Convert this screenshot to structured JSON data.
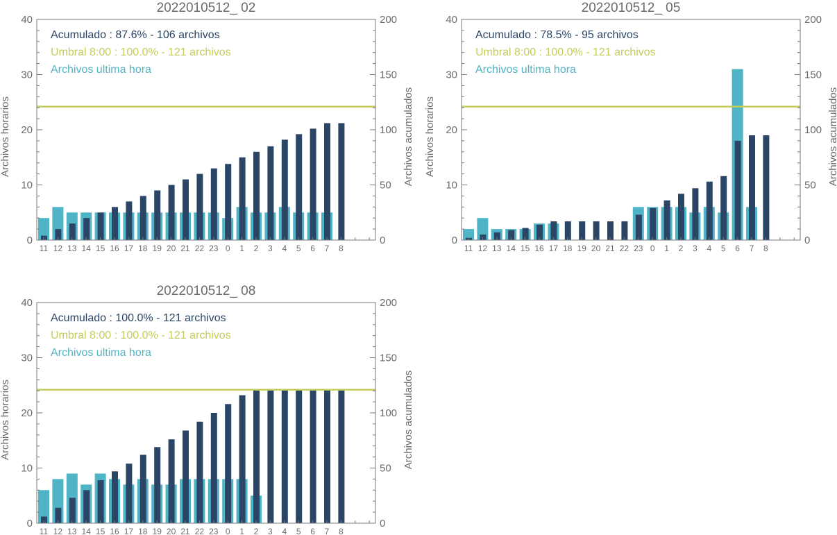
{
  "colors": {
    "hourly": "#4fb4c5",
    "cumulative": "#2b4566",
    "threshold": "#c3cc5c",
    "axis": "#7a7a7a",
    "text": "#6b6b6b"
  },
  "chart_data": [
    {
      "type": "bar",
      "title": "2022010512_ 02",
      "ylabel": "Archivos horarios",
      "y2label": "Archivos acumulados",
      "ylim": [
        0,
        40
      ],
      "y2lim": [
        0,
        200
      ],
      "yticks": [
        "0",
        "10",
        "20",
        "30",
        "40"
      ],
      "y2ticks": [
        "0",
        "50",
        "100",
        "150",
        "200"
      ],
      "categories": [
        "11",
        "12",
        "13",
        "14",
        "15",
        "16",
        "17",
        "18",
        "19",
        "20",
        "21",
        "22",
        "23",
        "0",
        "1",
        "2",
        "3",
        "4",
        "5",
        "6",
        "7",
        "8"
      ],
      "threshold": 121,
      "legend": {
        "cumulative": "Acumulado : 87.6% - 106 archivos",
        "threshold": "Umbral 8:00 : 100.0% - 121 archivos",
        "hourly": "Archivos ultima hora"
      },
      "series": [
        {
          "name": "Archivos ultima hora",
          "axis": "left",
          "values": [
            4,
            6,
            5,
            5,
            5,
            5,
            5,
            5,
            5,
            5,
            5,
            5,
            5,
            4,
            6,
            5,
            5,
            6,
            5,
            5,
            5,
            null
          ]
        },
        {
          "name": "Acumulado",
          "axis": "right",
          "values": [
            4,
            10,
            15,
            20,
            25,
            30,
            35,
            40,
            45,
            50,
            55,
            60,
            65,
            69,
            75,
            80,
            85,
            91,
            96,
            101,
            106,
            106
          ]
        }
      ]
    },
    {
      "type": "bar",
      "title": "2022010512_ 05",
      "ylabel": "Archivos horarios",
      "y2label": "Archivos acumulados",
      "ylim": [
        0,
        40
      ],
      "y2lim": [
        0,
        200
      ],
      "yticks": [
        "0",
        "10",
        "20",
        "30",
        "40"
      ],
      "y2ticks": [
        "0",
        "50",
        "100",
        "150",
        "200"
      ],
      "categories": [
        "11",
        "12",
        "13",
        "14",
        "15",
        "16",
        "17",
        "18",
        "19",
        "20",
        "21",
        "22",
        "23",
        "0",
        "1",
        "2",
        "3",
        "4",
        "5",
        "6",
        "7",
        "8"
      ],
      "threshold": 121,
      "legend": {
        "cumulative": "Acumulado : 78.5% - 95 archivos",
        "threshold": "Umbral 8:00 : 100.0% - 121 archivos",
        "hourly": "Archivos ultima hora"
      },
      "series": [
        {
          "name": "Archivos ultima hora",
          "axis": "left",
          "values": [
            2,
            4,
            2,
            2,
            2,
            3,
            3,
            null,
            null,
            null,
            null,
            null,
            6,
            6,
            6,
            6,
            5,
            6,
            5,
            31,
            6,
            null
          ]
        },
        {
          "name": "Acumulado",
          "axis": "right",
          "values": [
            2,
            5,
            7,
            9,
            11,
            14,
            17,
            17,
            17,
            17,
            17,
            17,
            23,
            29,
            36,
            42,
            47,
            53,
            58,
            90,
            95,
            95
          ]
        }
      ]
    },
    {
      "type": "bar",
      "title": "2022010512_ 08",
      "ylabel": "Archivos horarios",
      "y2label": "Archivos acumulados",
      "ylim": [
        0,
        40
      ],
      "y2lim": [
        0,
        200
      ],
      "yticks": [
        "0",
        "10",
        "20",
        "30",
        "40"
      ],
      "y2ticks": [
        "0",
        "50",
        "100",
        "150",
        "200"
      ],
      "categories": [
        "11",
        "12",
        "13",
        "14",
        "15",
        "16",
        "17",
        "18",
        "19",
        "20",
        "21",
        "22",
        "23",
        "0",
        "1",
        "2",
        "3",
        "4",
        "5",
        "6",
        "7",
        "8"
      ],
      "threshold": 121,
      "legend": {
        "cumulative": "Acumulado : 100.0% - 121 archivos",
        "threshold": "Umbral 8:00 : 100.0% - 121 archivos",
        "hourly": "Archivos ultima hora"
      },
      "series": [
        {
          "name": "Archivos ultima hora",
          "axis": "left",
          "values": [
            6,
            8,
            9,
            7,
            9,
            8,
            7,
            8,
            7,
            7,
            8,
            8,
            8,
            8,
            8,
            5,
            null,
            null,
            null,
            null,
            null,
            null
          ]
        },
        {
          "name": "Acumulado",
          "axis": "right",
          "values": [
            6,
            14,
            23,
            30,
            39,
            47,
            54,
            62,
            69,
            76,
            84,
            92,
            100,
            108,
            116,
            121,
            121,
            121,
            121,
            121,
            121,
            121
          ]
        }
      ]
    }
  ]
}
